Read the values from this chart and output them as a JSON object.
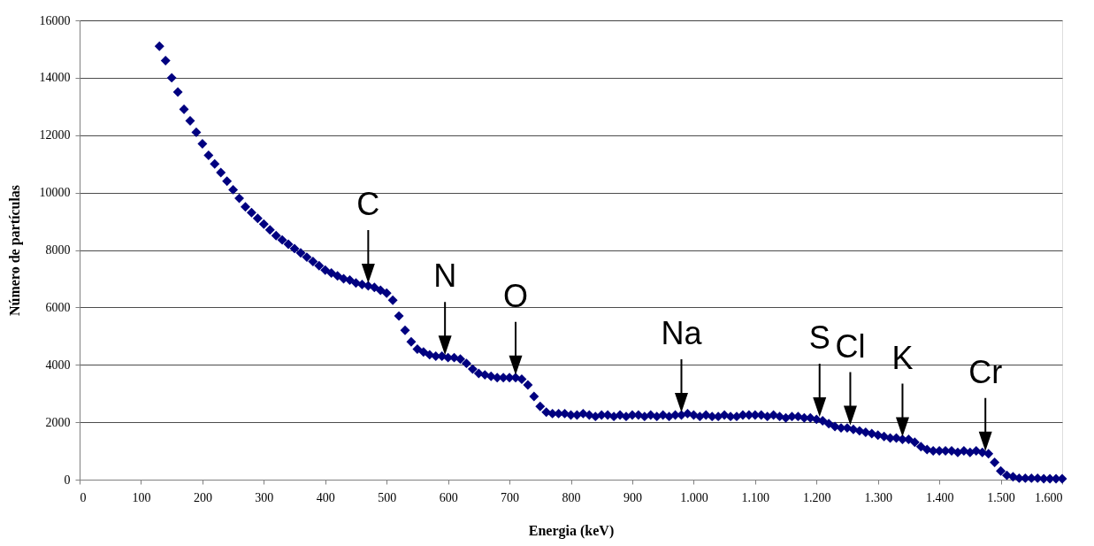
{
  "chart_data": {
    "type": "scatter",
    "xlabel": "Energia (keV)",
    "ylabel": "Número de partículas",
    "x": [
      130,
      140,
      150,
      160,
      170,
      180,
      190,
      200,
      210,
      220,
      230,
      240,
      250,
      260,
      270,
      280,
      290,
      300,
      310,
      320,
      330,
      340,
      350,
      360,
      370,
      380,
      390,
      400,
      410,
      420,
      430,
      440,
      450,
      460,
      470,
      480,
      490,
      500,
      510,
      520,
      530,
      540,
      550,
      560,
      570,
      580,
      590,
      600,
      610,
      620,
      630,
      640,
      650,
      660,
      670,
      680,
      690,
      700,
      710,
      720,
      730,
      740,
      750,
      760,
      770,
      780,
      790,
      800,
      810,
      820,
      830,
      840,
      850,
      860,
      870,
      880,
      890,
      900,
      910,
      920,
      930,
      940,
      950,
      960,
      970,
      980,
      990,
      1000,
      1010,
      1020,
      1030,
      1040,
      1050,
      1060,
      1070,
      1080,
      1090,
      1100,
      1110,
      1120,
      1130,
      1140,
      1150,
      1160,
      1170,
      1180,
      1190,
      1200,
      1210,
      1220,
      1230,
      1240,
      1250,
      1260,
      1270,
      1280,
      1290,
      1300,
      1310,
      1320,
      1330,
      1340,
      1350,
      1360,
      1370,
      1380,
      1390,
      1400,
      1410,
      1420,
      1430,
      1440,
      1450,
      1460,
      1470,
      1480,
      1490,
      1500,
      1510,
      1520,
      1530,
      1540,
      1550,
      1560,
      1570,
      1580,
      1590,
      1600
    ],
    "series": [
      {
        "color": "#000080",
        "values": [
          15100,
          14600,
          14000,
          13500,
          12900,
          12500,
          12100,
          11700,
          11300,
          11000,
          10700,
          10400,
          10100,
          9800,
          9500,
          9300,
          9100,
          8900,
          8700,
          8500,
          8350,
          8200,
          8050,
          7900,
          7750,
          7600,
          7450,
          7300,
          7200,
          7100,
          7000,
          6950,
          6850,
          6800,
          6750,
          6700,
          6600,
          6500,
          6250,
          5700,
          5200,
          4800,
          4550,
          4450,
          4350,
          4300,
          4300,
          4250,
          4250,
          4200,
          4050,
          3850,
          3700,
          3650,
          3600,
          3550,
          3550,
          3550,
          3550,
          3500,
          3300,
          2900,
          2550,
          2350,
          2300,
          2300,
          2300,
          2250,
          2250,
          2300,
          2250,
          2200,
          2250,
          2250,
          2200,
          2250,
          2200,
          2250,
          2250,
          2200,
          2250,
          2200,
          2250,
          2200,
          2250,
          2250,
          2300,
          2250,
          2200,
          2250,
          2200,
          2200,
          2250,
          2200,
          2200,
          2250,
          2250,
          2250,
          2250,
          2200,
          2250,
          2200,
          2150,
          2200,
          2200,
          2150,
          2150,
          2100,
          2050,
          1950,
          1850,
          1800,
          1800,
          1750,
          1700,
          1650,
          1600,
          1550,
          1500,
          1450,
          1450,
          1400,
          1400,
          1300,
          1150,
          1050,
          1000,
          1000,
          1000,
          1000,
          950,
          1000,
          950,
          1000,
          950,
          900,
          600,
          300,
          150,
          100,
          50,
          50,
          50,
          50,
          30,
          30,
          30,
          30
        ]
      }
    ],
    "marker": "diamond",
    "grid": "y",
    "xlim": [
      0,
      1600
    ],
    "ylim": [
      0,
      16000
    ],
    "xticks": [
      0,
      100,
      200,
      300,
      400,
      500,
      600,
      700,
      800,
      900,
      {
        "value": 1000,
        "label": "1.000"
      },
      {
        "value": 1100,
        "label": "1.100"
      },
      {
        "value": 1200,
        "label": "1.200"
      },
      {
        "value": 1300,
        "label": "1.300"
      },
      {
        "value": 1400,
        "label": "1.400"
      },
      {
        "value": 1500,
        "label": "1.500"
      },
      {
        "value": 1600,
        "label": "1.600"
      }
    ],
    "yticks": [
      0,
      2000,
      4000,
      6000,
      8000,
      10000,
      12000,
      14000,
      16000
    ],
    "annotations": [
      {
        "text": "C",
        "x": 470,
        "y": 6750
      },
      {
        "text": "N",
        "x": 595,
        "y": 4250
      },
      {
        "text": "O",
        "x": 710,
        "y": 3550
      },
      {
        "text": "Na",
        "x": 980,
        "y": 2250
      },
      {
        "text": "S",
        "x": 1205,
        "y": 2100
      },
      {
        "text": "Cl",
        "x": 1255,
        "y": 1800
      },
      {
        "text": "K",
        "x": 1340,
        "y": 1400
      },
      {
        "text": "Cr",
        "x": 1475,
        "y": 900
      }
    ]
  }
}
